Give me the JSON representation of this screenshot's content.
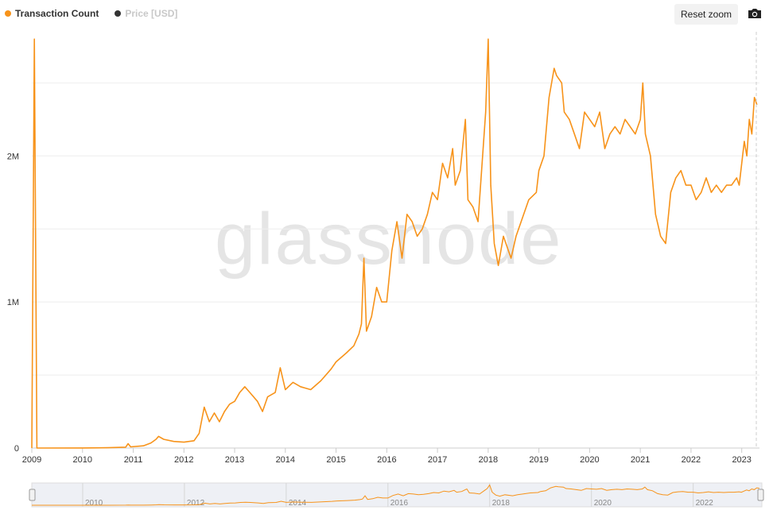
{
  "legend": {
    "series1": {
      "label": "Transaction Count",
      "color": "#f7931a"
    },
    "series2": {
      "label": "Price [USD]",
      "color": "#333333"
    }
  },
  "toolbar": {
    "reset_zoom_label": "Reset zoom",
    "camera_icon": "camera-icon"
  },
  "watermark": "glassnode",
  "chart_data": {
    "type": "line",
    "title": "",
    "xlabel": "",
    "ylabel": "",
    "x_ticks": [
      "2009",
      "2010",
      "2011",
      "2012",
      "2013",
      "2014",
      "2015",
      "2016",
      "2017",
      "2018",
      "2019",
      "2020",
      "2021",
      "2022",
      "2023"
    ],
    "y_ticks": [
      "0",
      "1M",
      "2M"
    ],
    "ylim": [
      0,
      2850000
    ],
    "xlim": [
      2009.0,
      2023.35
    ],
    "grid": true,
    "legend_position": "top-left",
    "series": [
      {
        "name": "Transaction Count",
        "color": "#f7931a",
        "points": [
          [
            2009.0,
            0
          ],
          [
            2009.05,
            2800000
          ],
          [
            2009.1,
            0
          ],
          [
            2010.0,
            500
          ],
          [
            2010.5,
            2000
          ],
          [
            2010.85,
            6000
          ],
          [
            2010.9,
            30000
          ],
          [
            2010.95,
            8000
          ],
          [
            2011.2,
            15000
          ],
          [
            2011.35,
            35000
          ],
          [
            2011.45,
            60000
          ],
          [
            2011.5,
            80000
          ],
          [
            2011.6,
            60000
          ],
          [
            2011.8,
            45000
          ],
          [
            2012.0,
            40000
          ],
          [
            2012.2,
            50000
          ],
          [
            2012.3,
            100000
          ],
          [
            2012.4,
            280000
          ],
          [
            2012.5,
            180000
          ],
          [
            2012.6,
            240000
          ],
          [
            2012.7,
            180000
          ],
          [
            2012.8,
            250000
          ],
          [
            2012.9,
            300000
          ],
          [
            2013.0,
            320000
          ],
          [
            2013.1,
            380000
          ],
          [
            2013.2,
            420000
          ],
          [
            2013.3,
            380000
          ],
          [
            2013.45,
            320000
          ],
          [
            2013.55,
            250000
          ],
          [
            2013.65,
            350000
          ],
          [
            2013.8,
            380000
          ],
          [
            2013.9,
            550000
          ],
          [
            2014.0,
            400000
          ],
          [
            2014.15,
            450000
          ],
          [
            2014.3,
            420000
          ],
          [
            2014.5,
            400000
          ],
          [
            2014.7,
            460000
          ],
          [
            2014.9,
            540000
          ],
          [
            2015.0,
            590000
          ],
          [
            2015.2,
            650000
          ],
          [
            2015.35,
            700000
          ],
          [
            2015.45,
            780000
          ],
          [
            2015.5,
            850000
          ],
          [
            2015.55,
            1300000
          ],
          [
            2015.6,
            800000
          ],
          [
            2015.7,
            900000
          ],
          [
            2015.8,
            1100000
          ],
          [
            2015.9,
            1000000
          ],
          [
            2016.0,
            1000000
          ],
          [
            2016.1,
            1350000
          ],
          [
            2016.2,
            1550000
          ],
          [
            2016.3,
            1300000
          ],
          [
            2016.4,
            1600000
          ],
          [
            2016.5,
            1550000
          ],
          [
            2016.6,
            1450000
          ],
          [
            2016.7,
            1500000
          ],
          [
            2016.8,
            1600000
          ],
          [
            2016.9,
            1750000
          ],
          [
            2017.0,
            1700000
          ],
          [
            2017.1,
            1950000
          ],
          [
            2017.2,
            1850000
          ],
          [
            2017.3,
            2050000
          ],
          [
            2017.35,
            1800000
          ],
          [
            2017.45,
            1900000
          ],
          [
            2017.55,
            2250000
          ],
          [
            2017.6,
            1700000
          ],
          [
            2017.7,
            1650000
          ],
          [
            2017.8,
            1550000
          ],
          [
            2017.9,
            2050000
          ],
          [
            2017.95,
            2300000
          ],
          [
            2018.0,
            2800000
          ],
          [
            2018.05,
            1800000
          ],
          [
            2018.12,
            1400000
          ],
          [
            2018.2,
            1250000
          ],
          [
            2018.3,
            1450000
          ],
          [
            2018.45,
            1300000
          ],
          [
            2018.55,
            1450000
          ],
          [
            2018.65,
            1550000
          ],
          [
            2018.8,
            1700000
          ],
          [
            2018.95,
            1750000
          ],
          [
            2019.0,
            1900000
          ],
          [
            2019.1,
            2000000
          ],
          [
            2019.2,
            2400000
          ],
          [
            2019.3,
            2600000
          ],
          [
            2019.35,
            2550000
          ],
          [
            2019.45,
            2500000
          ],
          [
            2019.5,
            2300000
          ],
          [
            2019.6,
            2250000
          ],
          [
            2019.7,
            2150000
          ],
          [
            2019.8,
            2050000
          ],
          [
            2019.9,
            2300000
          ],
          [
            2020.0,
            2250000
          ],
          [
            2020.1,
            2200000
          ],
          [
            2020.2,
            2300000
          ],
          [
            2020.3,
            2050000
          ],
          [
            2020.4,
            2150000
          ],
          [
            2020.5,
            2200000
          ],
          [
            2020.6,
            2150000
          ],
          [
            2020.7,
            2250000
          ],
          [
            2020.8,
            2200000
          ],
          [
            2020.9,
            2150000
          ],
          [
            2021.0,
            2250000
          ],
          [
            2021.05,
            2500000
          ],
          [
            2021.1,
            2150000
          ],
          [
            2021.2,
            2000000
          ],
          [
            2021.3,
            1600000
          ],
          [
            2021.4,
            1450000
          ],
          [
            2021.5,
            1400000
          ],
          [
            2021.6,
            1750000
          ],
          [
            2021.7,
            1850000
          ],
          [
            2021.8,
            1900000
          ],
          [
            2021.9,
            1800000
          ],
          [
            2022.0,
            1800000
          ],
          [
            2022.1,
            1700000
          ],
          [
            2022.2,
            1750000
          ],
          [
            2022.3,
            1850000
          ],
          [
            2022.4,
            1750000
          ],
          [
            2022.5,
            1800000
          ],
          [
            2022.6,
            1750000
          ],
          [
            2022.7,
            1800000
          ],
          [
            2022.8,
            1800000
          ],
          [
            2022.9,
            1850000
          ],
          [
            2022.95,
            1800000
          ],
          [
            2023.0,
            1950000
          ],
          [
            2023.05,
            2100000
          ],
          [
            2023.1,
            2000000
          ],
          [
            2023.15,
            2250000
          ],
          [
            2023.2,
            2150000
          ],
          [
            2023.25,
            2400000
          ],
          [
            2023.3,
            2350000
          ]
        ]
      }
    ],
    "navigator": {
      "labels": [
        "2010",
        "2012",
        "2014",
        "2016",
        "2018",
        "2020",
        "2022"
      ]
    }
  }
}
